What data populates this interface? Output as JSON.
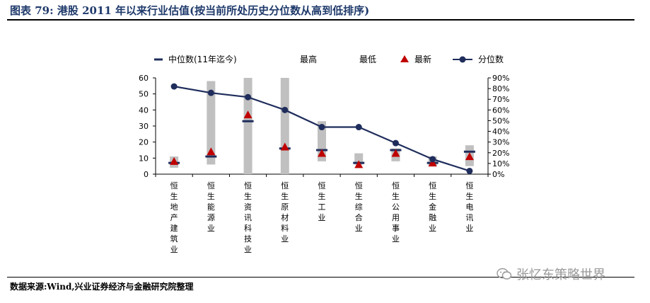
{
  "header": {
    "title": "图表 79: 港股 2011 年以来行业估值(按当前所处历史分位数从高到低排序)"
  },
  "footer": {
    "source": "数据来源:Wind,兴业证券经济与金融研究院整理"
  },
  "watermark": {
    "text": "张忆东策略世界",
    "icon": "wechat-icon"
  },
  "colors": {
    "range_bar": "#c0c0c0",
    "median": "#1f2d5c",
    "latest": "#c00000",
    "percentile_line": "#1f2d5c"
  },
  "chart_data": {
    "type": "bar",
    "legend": [
      "中位数(11年迄今)",
      "最高",
      "最低",
      "最新",
      "分位数"
    ],
    "legend_position": "top",
    "categories": [
      "恒生地产建筑业",
      "恒生能源业",
      "恒生资讯科技业",
      "恒生原材料业",
      "恒生工业",
      "恒生综合业",
      "恒生公用事业",
      "恒生金融业",
      "恒生电讯业"
    ],
    "series": [
      {
        "name": "最高",
        "values": [
          11,
          58,
          60,
          60,
          33,
          13,
          16,
          11,
          18
        ]
      },
      {
        "name": "最低",
        "values": [
          4,
          6,
          0,
          0,
          8,
          6,
          8,
          5,
          5
        ]
      },
      {
        "name": "中位数(11年迄今)",
        "values": [
          7,
          11,
          33,
          16,
          15,
          7,
          15,
          7,
          14
        ]
      },
      {
        "name": "最新",
        "values": [
          8,
          14,
          37,
          17,
          13,
          6,
          13,
          7,
          11
        ]
      },
      {
        "name": "分位数",
        "values": [
          0.82,
          0.76,
          0.72,
          0.6,
          0.44,
          0.44,
          0.29,
          0.14,
          0.03
        ]
      }
    ],
    "ylim": [
      0,
      60
    ],
    "y_ticks": [
      "0",
      "10",
      "20",
      "30",
      "40",
      "50",
      "60"
    ],
    "y2lim": [
      0,
      0.9
    ],
    "y2_ticks": [
      "0%",
      "10%",
      "20%",
      "30%",
      "40%",
      "50%",
      "60%",
      "70%",
      "80%",
      "90%"
    ],
    "grid": false
  }
}
